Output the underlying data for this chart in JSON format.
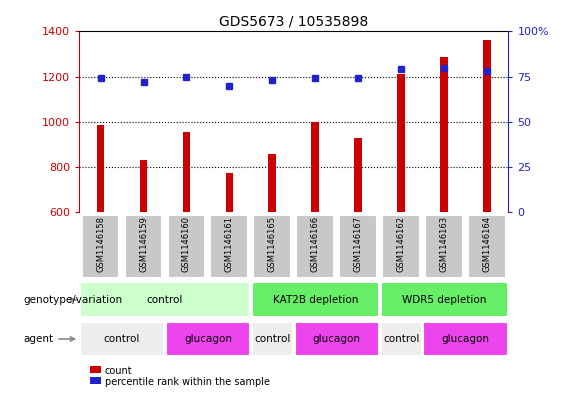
{
  "title": "GDS5673 / 10535898",
  "samples": [
    "GSM1146158",
    "GSM1146159",
    "GSM1146160",
    "GSM1146161",
    "GSM1146165",
    "GSM1146166",
    "GSM1146167",
    "GSM1146162",
    "GSM1146163",
    "GSM1146164"
  ],
  "counts": [
    985,
    830,
    955,
    775,
    858,
    1000,
    930,
    1210,
    1285,
    1360
  ],
  "percentiles": [
    74,
    72,
    75,
    70,
    73,
    74,
    74,
    79,
    80,
    78
  ],
  "ylim_left": [
    600,
    1400
  ],
  "ylim_right": [
    0,
    100
  ],
  "yticks_left": [
    600,
    800,
    1000,
    1200,
    1400
  ],
  "yticks_right": [
    0,
    25,
    50,
    75,
    100
  ],
  "bar_color": "#cc0000",
  "dot_color": "#2222cc",
  "bar_width": 0.18,
  "genotype_groups": [
    {
      "label": "control",
      "span": [
        0,
        4
      ],
      "color": "#ccffcc"
    },
    {
      "label": "KAT2B depletion",
      "span": [
        4,
        7
      ],
      "color": "#66ee66"
    },
    {
      "label": "WDR5 depletion",
      "span": [
        7,
        10
      ],
      "color": "#66ee66"
    }
  ],
  "agent_groups": [
    {
      "label": "control",
      "span": [
        0,
        2
      ],
      "color": "#eeeeee"
    },
    {
      "label": "glucagon",
      "span": [
        2,
        4
      ],
      "color": "#ee44ee"
    },
    {
      "label": "control",
      "span": [
        4,
        5
      ],
      "color": "#eeeeee"
    },
    {
      "label": "glucagon",
      "span": [
        5,
        7
      ],
      "color": "#ee44ee"
    },
    {
      "label": "control",
      "span": [
        7,
        8
      ],
      "color": "#eeeeee"
    },
    {
      "label": "glucagon",
      "span": [
        8,
        10
      ],
      "color": "#ee44ee"
    }
  ],
  "legend_items": [
    {
      "label": "count",
      "color": "#cc0000"
    },
    {
      "label": "percentile rank within the sample",
      "color": "#2222cc"
    }
  ],
  "genotype_label": "genotype/variation",
  "agent_label": "agent",
  "tick_color_left": "#cc0000",
  "tick_color_right": "#2222cc",
  "grid_color": "#000000",
  "xlabel_box_color": "#c8c8c8",
  "fig_width": 5.65,
  "fig_height": 3.93,
  "dpi": 100
}
